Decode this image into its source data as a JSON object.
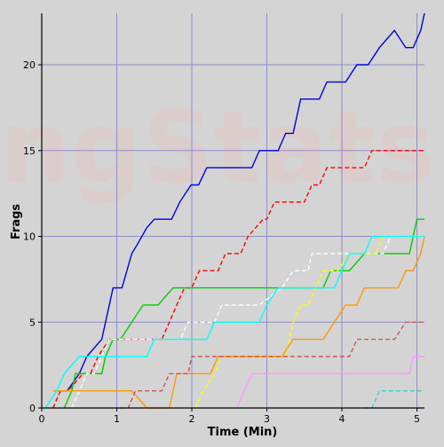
{
  "watermark": "ngStats",
  "chart_data": {
    "type": "line",
    "title": "",
    "xlabel": "Time (Min)",
    "ylabel": "Frags",
    "xlim": [
      0,
      5.1
    ],
    "ylim": [
      0,
      23
    ],
    "grid": true,
    "x_ticks": [
      0,
      1,
      2,
      3,
      4,
      5
    ],
    "y_ticks": [
      0,
      5,
      10,
      15,
      20
    ],
    "x_tick_labels": [
      "0",
      "1",
      "2",
      "3",
      "4",
      "5"
    ],
    "y_tick_labels": [
      "0",
      "5",
      "10",
      "15",
      "20"
    ],
    "colors": {
      "background": "#d4d4d4",
      "grid": "#8d8dc8",
      "axis": "#000000",
      "watermark": "#e3c8c8"
    },
    "series": [
      {
        "color": "#0000dd",
        "dash": "solid",
        "x": [
          0.17,
          0.34,
          0.5,
          0.6,
          0.8,
          0.95,
          1.07,
          1.2,
          1.27,
          1.4,
          1.5,
          1.55,
          1.73,
          1.84,
          1.99,
          2.09,
          2.2,
          2.3,
          2.38,
          2.8,
          2.9,
          3.15,
          3.25,
          3.35,
          3.45,
          3.55,
          3.7,
          3.8,
          3.95,
          4.05,
          4.2,
          4.25,
          4.35,
          4.5,
          4.6,
          4.7,
          4.85,
          4.95,
          5.05,
          5.1
        ],
        "y": [
          1,
          1,
          2,
          3,
          4,
          7,
          7,
          9,
          9.5,
          10.5,
          11,
          11,
          11,
          12,
          13,
          13,
          14,
          14,
          14,
          14,
          15,
          15,
          16,
          16,
          18,
          18,
          18,
          19,
          19,
          19,
          20,
          20,
          20,
          21,
          21.5,
          22,
          21,
          21,
          22,
          23
        ]
      },
      {
        "color": "#ff0000",
        "dash": "dashed",
        "x": [
          0.15,
          0.25,
          0.35,
          0.55,
          0.65,
          0.75,
          0.9,
          1.6,
          1.7,
          1.8,
          1.9,
          2.0,
          2.1,
          2.35,
          2.45,
          2.55,
          2.65,
          2.75,
          2.95,
          3.0,
          3.1,
          3.2,
          3.5,
          3.6,
          3.7,
          3.8,
          3.9,
          4.3,
          4.4,
          4.5,
          5.1
        ],
        "y": [
          0,
          1,
          1,
          2,
          2,
          3,
          4,
          4,
          5,
          6,
          7,
          7,
          8,
          8,
          9,
          9,
          9,
          10,
          11,
          11,
          12,
          12,
          12,
          13,
          13,
          14,
          14,
          14,
          15,
          15,
          15
        ]
      },
      {
        "color": "#00cc00",
        "dash": "solid",
        "x": [
          0.3,
          0.4,
          0.45,
          0.6,
          0.8,
          0.85,
          0.95,
          1.0,
          1.05,
          1.2,
          1.35,
          1.45,
          1.55,
          1.75,
          2.1,
          2.5,
          3.1,
          3.4,
          3.75,
          3.85,
          3.95,
          4.0,
          4.1,
          4.3,
          4.9,
          5.0,
          5.1
        ],
        "y": [
          0,
          1,
          2,
          2,
          2,
          3,
          4,
          4,
          4,
          5,
          6,
          6,
          6,
          7,
          7,
          7,
          7,
          7,
          7,
          8,
          8,
          8,
          8,
          9,
          9,
          11,
          11
        ]
      },
      {
        "color": "#ffffff",
        "dash": "dashed",
        "x": [
          0.4,
          0.5,
          0.6,
          0.7,
          0.8,
          0.9,
          1.1,
          1.4,
          1.7,
          1.85,
          1.95,
          2.05,
          2.3,
          2.4,
          2.9,
          3.2,
          3.35,
          3.55,
          3.6,
          3.7,
          4.0,
          4.1,
          4.3,
          4.55,
          4.65,
          4.75,
          5.1
        ],
        "y": [
          0,
          1,
          2,
          2,
          3,
          4,
          4,
          4,
          4,
          4,
          5,
          5,
          5,
          6,
          6,
          7,
          8,
          8,
          9,
          9,
          9,
          9,
          9,
          9,
          10,
          10,
          10
        ]
      },
      {
        "color": "#ffff00",
        "dash": "dashed",
        "x": [
          2.05,
          2.15,
          2.3,
          2.4,
          2.5,
          3.25,
          3.35,
          3.45,
          3.55,
          3.65,
          3.75,
          3.85,
          3.95,
          4.1,
          4.45,
          4.55,
          4.65,
          5.1
        ],
        "y": [
          0,
          1,
          2,
          3,
          3,
          3,
          5,
          6,
          6,
          7,
          8,
          8,
          8,
          9,
          9,
          10,
          10,
          10
        ]
      },
      {
        "color": "#ff9900",
        "dash": "solid",
        "x": [
          0.15,
          0.4,
          0.6,
          0.8,
          1.2,
          1.4,
          1.5,
          1.7,
          1.8,
          2.25,
          2.35,
          2.45,
          2.7,
          3.0,
          3.2,
          3.35,
          3.45,
          3.75,
          3.9,
          4.05,
          4.2,
          4.3,
          4.4,
          4.75,
          4.85,
          4.95,
          5.05,
          5.1
        ],
        "y": [
          1,
          1,
          1,
          1,
          1,
          0,
          0,
          0,
          2,
          2,
          3,
          3,
          3,
          3,
          3,
          4,
          4,
          4,
          5,
          6,
          6,
          7,
          7,
          7,
          8,
          8,
          9,
          10
        ]
      },
      {
        "color": "#cc5555",
        "dash": "dashed",
        "x": [
          1.05,
          1.15,
          1.25,
          1.5,
          1.6,
          1.7,
          1.95,
          2.0,
          2.25,
          2.55,
          2.8,
          3.0,
          3.5,
          3.75,
          4.1,
          4.2,
          4.35,
          4.6,
          4.7,
          4.85,
          4.95,
          5.1
        ],
        "y": [
          0,
          0,
          1,
          1,
          1,
          2,
          2,
          3,
          3,
          3,
          3,
          3,
          3,
          3,
          3,
          4,
          4,
          4,
          4,
          5,
          5,
          5
        ]
      },
      {
        "color": "#00ffff",
        "dash": "solid",
        "x": [
          0.05,
          0.2,
          0.3,
          0.5,
          0.8,
          1.0,
          1.05,
          1.15,
          1.4,
          1.5,
          1.6,
          1.75,
          2.2,
          2.3,
          2.4,
          2.9,
          3.0,
          3.15,
          3.4,
          3.9,
          4.0,
          4.1,
          4.3,
          4.4,
          4.55,
          5.1
        ],
        "y": [
          0,
          1,
          2,
          3,
          3,
          3,
          3,
          3,
          3,
          4,
          4,
          4,
          4,
          5,
          5,
          5,
          6,
          7,
          7,
          7,
          8,
          9,
          9,
          10,
          10,
          10
        ]
      },
      {
        "color": "#ff99ff",
        "dash": "solid",
        "x": [
          2.6,
          2.7,
          2.8,
          3.0,
          3.5,
          4.0,
          4.5,
          4.9,
          4.95,
          5.05,
          5.1
        ],
        "y": [
          0,
          1,
          2,
          2,
          2,
          2,
          2,
          2,
          3,
          3,
          3
        ]
      },
      {
        "color": "#33cccc",
        "dash": "dashed",
        "x": [
          4.3,
          4.4,
          4.5,
          4.7,
          5.1
        ],
        "y": [
          0,
          0,
          1,
          1,
          1
        ]
      }
    ]
  }
}
